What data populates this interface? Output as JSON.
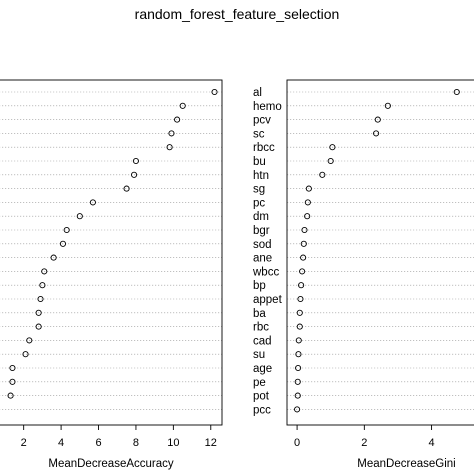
{
  "chart_data": {
    "type": "scatter",
    "title": "random_forest_feature_selection",
    "categories": [
      "al",
      "hemo",
      "pcv",
      "sc",
      "rbcc",
      "bu",
      "htn",
      "sg",
      "pc",
      "dm",
      "bgr",
      "sod",
      "ane",
      "wbcc",
      "bp",
      "appet",
      "ba",
      "rbc",
      "cad",
      "su",
      "age",
      "pe",
      "pot",
      "pcc"
    ],
    "panels": [
      {
        "name": "MeanDecreaseAccuracy",
        "xlabel": "MeanDecreaseAccuracy",
        "ticks": [
          2,
          4,
          6,
          8,
          10,
          12
        ],
        "xlim": [
          0.2,
          12.6
        ],
        "values": [
          12.2,
          10.5,
          10.2,
          9.9,
          9.8,
          8.0,
          7.9,
          7.5,
          5.7,
          5.0,
          4.3,
          4.1,
          3.6,
          3.1,
          3.0,
          2.9,
          2.8,
          2.8,
          2.3,
          2.1,
          1.4,
          1.4,
          1.3,
          null
        ]
      },
      {
        "name": "MeanDecreaseGini",
        "xlabel": "MeanDecreaseGini",
        "ticks": [
          0,
          2,
          4
        ],
        "xlim": [
          -0.3,
          5.5
        ],
        "values": [
          4.75,
          2.7,
          2.4,
          2.35,
          1.05,
          1.0,
          0.75,
          0.35,
          0.32,
          0.3,
          0.22,
          0.2,
          0.18,
          0.15,
          0.12,
          0.1,
          0.08,
          0.08,
          0.05,
          0.04,
          0.03,
          0.02,
          0.02,
          0.0
        ]
      }
    ],
    "grid": true,
    "legend": "none"
  }
}
